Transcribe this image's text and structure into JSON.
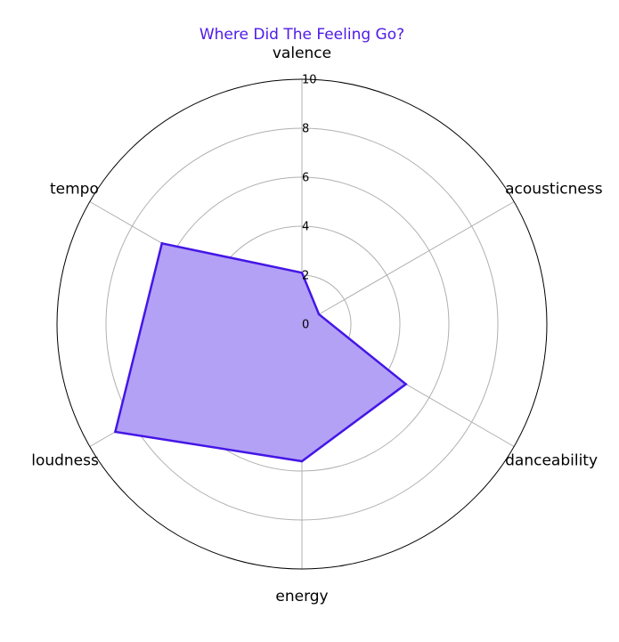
{
  "chart_data": {
    "type": "radar",
    "title": "Where Did The Feeling Go?",
    "axes": [
      "valence",
      "acousticness",
      "danceability",
      "energy",
      "loudness",
      "tempo"
    ],
    "series": [
      {
        "values": [
          2.1,
          0.8,
          4.9,
          5.6,
          8.8,
          6.6
        ]
      }
    ],
    "rlim": [
      0,
      10
    ],
    "r_ticks": [
      "0",
      "2",
      "4",
      "6",
      "8",
      "10"
    ],
    "grid": true,
    "colors": {
      "title": "#4f1be9",
      "series_line": "#4416e6",
      "series_fill": "#b3a1f6",
      "grid": "#b0b0b0",
      "outer_ring": "#000000"
    }
  }
}
